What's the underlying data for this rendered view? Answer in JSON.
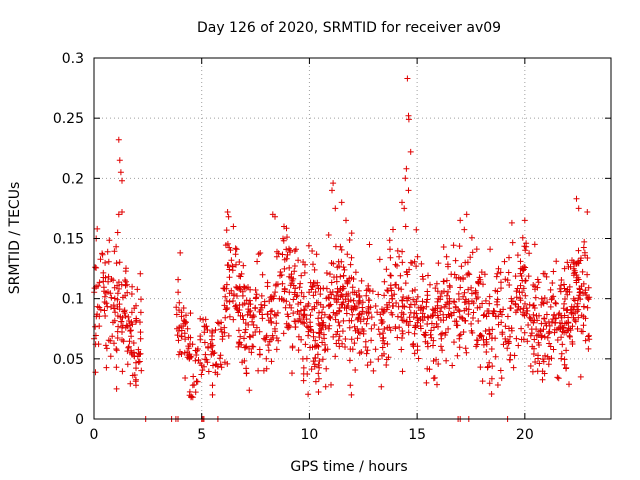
{
  "chart_data": {
    "type": "scatter",
    "title": "Day 126 of 2020, SRMTID for receiver av09",
    "xlabel": "GPS time / hours",
    "ylabel": "SRMTID / TECUs",
    "xlim": [
      0,
      24
    ],
    "ylim": [
      0,
      0.3
    ],
    "grid": true,
    "marker": "+",
    "color": "#e00000",
    "x_ticks": [
      0,
      5,
      10,
      15,
      20
    ],
    "x_tick_labels": [
      "0",
      "5",
      "10",
      "15",
      "20"
    ],
    "y_ticks": [
      0,
      0.05,
      0.1,
      0.15,
      0.2,
      0.25,
      0.3
    ],
    "y_tick_labels": [
      "0",
      "0.05",
      "0.1",
      "0.15",
      "0.2",
      "0.25",
      "0.3"
    ],
    "series": [
      {
        "name": "SRMTID",
        "segments": [
          {
            "start": 0.0,
            "end": 2.2,
            "base": 0.085,
            "spread": 0.03,
            "count": 160
          },
          {
            "start": 3.8,
            "end": 4.5,
            "base": 0.07,
            "spread": 0.02,
            "count": 50
          },
          {
            "start": 4.5,
            "end": 6.0,
            "base": 0.06,
            "spread": 0.02,
            "count": 70
          },
          {
            "start": 6.0,
            "end": 23.0,
            "base": 0.09,
            "spread": 0.03,
            "count": 1300
          }
        ],
        "highlights": [
          {
            "x": 1.15,
            "y": 0.232
          },
          {
            "x": 1.2,
            "y": 0.215
          },
          {
            "x": 1.25,
            "y": 0.205
          },
          {
            "x": 1.3,
            "y": 0.198
          },
          {
            "x": 1.15,
            "y": 0.17
          },
          {
            "x": 1.3,
            "y": 0.172
          },
          {
            "x": 14.55,
            "y": 0.283
          },
          {
            "x": 14.6,
            "y": 0.252
          },
          {
            "x": 14.62,
            "y": 0.249
          },
          {
            "x": 14.7,
            "y": 0.222
          },
          {
            "x": 14.5,
            "y": 0.208
          },
          {
            "x": 14.45,
            "y": 0.2
          },
          {
            "x": 14.6,
            "y": 0.19
          },
          {
            "x": 14.3,
            "y": 0.18
          },
          {
            "x": 14.4,
            "y": 0.175
          },
          {
            "x": 11.1,
            "y": 0.196
          },
          {
            "x": 11.05,
            "y": 0.19
          },
          {
            "x": 11.2,
            "y": 0.175
          },
          {
            "x": 11.5,
            "y": 0.18
          },
          {
            "x": 11.7,
            "y": 0.165
          },
          {
            "x": 22.4,
            "y": 0.183
          },
          {
            "x": 22.5,
            "y": 0.175
          },
          {
            "x": 22.9,
            "y": 0.172
          },
          {
            "x": 6.2,
            "y": 0.172
          },
          {
            "x": 6.25,
            "y": 0.168
          },
          {
            "x": 8.3,
            "y": 0.17
          },
          {
            "x": 8.4,
            "y": 0.168
          },
          {
            "x": 17.3,
            "y": 0.17
          },
          {
            "x": 17.0,
            "y": 0.165
          },
          {
            "x": 20.0,
            "y": 0.165
          },
          {
            "x": 19.4,
            "y": 0.163
          },
          {
            "x": 0.15,
            "y": 0.158
          },
          {
            "x": 0.1,
            "y": 0.15
          },
          {
            "x": 1.1,
            "y": 0.155
          },
          {
            "x": 4.0,
            "y": 0.138
          },
          {
            "x": 5.5,
            "y": 0.02
          },
          {
            "x": 11.95,
            "y": 0.02
          },
          {
            "x": 11.9,
            "y": 0.028
          },
          {
            "x": 5.5,
            "y": 0.028
          },
          {
            "x": 1.95,
            "y": 0.028
          },
          {
            "x": 1.05,
            "y": 0.025
          },
          {
            "x": 22.6,
            "y": 0.035
          }
        ],
        "zero_points": [
          2.4,
          3.6,
          3.8,
          3.9,
          5.0,
          5.05,
          5.1,
          5.75,
          16.9,
          17.0,
          17.4,
          19.2
        ]
      }
    ]
  }
}
